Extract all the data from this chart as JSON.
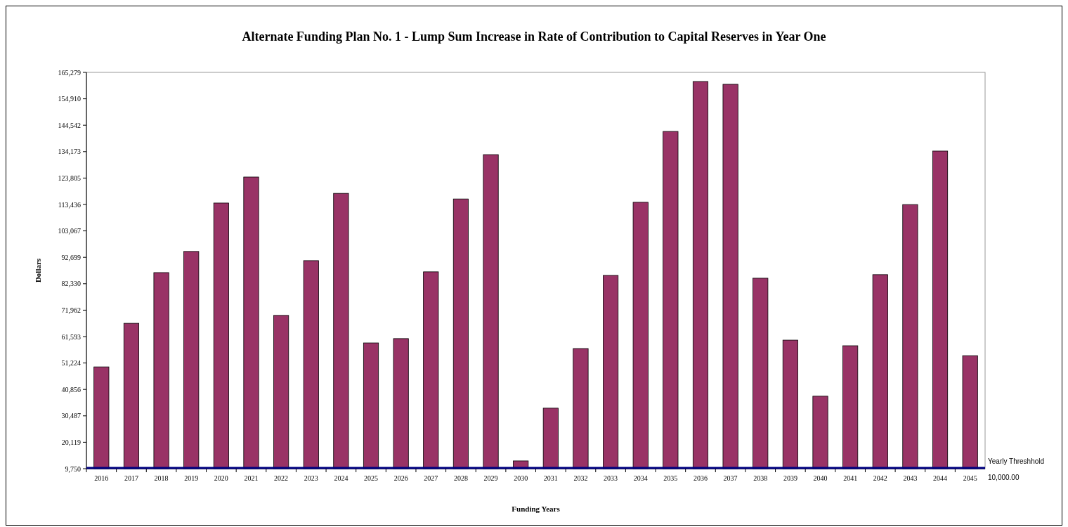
{
  "chart_data": {
    "type": "bar",
    "title": "Alternate Funding Plan No. 1 - Lump Sum Increase in  Rate of Contribution to Capital Reserves in Year One",
    "xlabel": "Funding Years",
    "ylabel": "Dollars",
    "categories": [
      "2016",
      "2017",
      "2018",
      "2019",
      "2020",
      "2021",
      "2022",
      "2023",
      "2024",
      "2025",
      "2026",
      "2027",
      "2028",
      "2029",
      "2030",
      "2031",
      "2032",
      "2033",
      "2034",
      "2035",
      "2036",
      "2037",
      "2038",
      "2039",
      "2040",
      "2041",
      "2042",
      "2043",
      "2044",
      "2045"
    ],
    "values": [
      49700,
      66800,
      86700,
      95000,
      114000,
      124200,
      69900,
      91400,
      117800,
      59100,
      60800,
      87000,
      115600,
      133000,
      12800,
      33500,
      56900,
      85600,
      114300,
      142100,
      161700,
      160600,
      84500,
      60200,
      38200,
      58000,
      85900,
      113400,
      134400,
      54100
    ],
    "color": "#993366",
    "ylim": [
      9750,
      165279
    ],
    "yticks": [
      {
        "value": 9750,
        "label": "9,750"
      },
      {
        "value": 20119,
        "label": "20,119"
      },
      {
        "value": 30487,
        "label": "30,487"
      },
      {
        "value": 40856,
        "label": "40,856"
      },
      {
        "value": 51224,
        "label": "51,224"
      },
      {
        "value": 61593,
        "label": "61,593"
      },
      {
        "value": 71962,
        "label": "71,962"
      },
      {
        "value": 82330,
        "label": "82,330"
      },
      {
        "value": 92699,
        "label": "92,699"
      },
      {
        "value": 103067,
        "label": "103,067"
      },
      {
        "value": 113436,
        "label": "113,436"
      },
      {
        "value": 123805,
        "label": "123,805"
      },
      {
        "value": 134173,
        "label": "134,173"
      },
      {
        "value": 144542,
        "label": "144,542"
      },
      {
        "value": 154910,
        "label": "154,910"
      },
      {
        "value": 165279,
        "label": "165,279"
      }
    ],
    "ref_lines": [
      {
        "axis": "y",
        "value": 10000,
        "label": "Yearly Threshhold",
        "color": "#000080"
      }
    ],
    "annotations": [
      "10,000.00"
    ],
    "grid": false
  }
}
